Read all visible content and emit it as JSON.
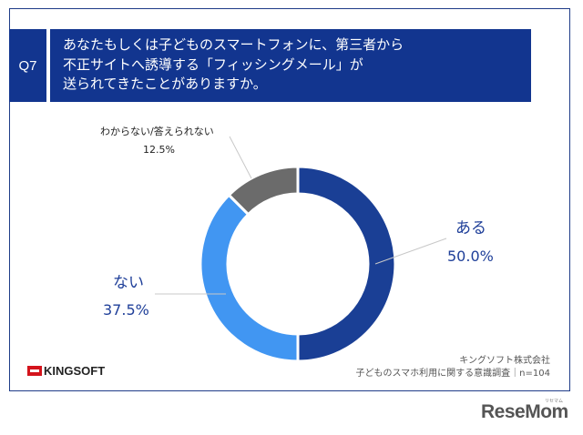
{
  "question": {
    "number": "Q7",
    "lines": [
      "あなたもしくは子どものスマートフォンに、第三者から",
      "不正サイトへ誘導する「フィッシングメール」が",
      "送られてきたことがありますか。"
    ]
  },
  "chart_data": {
    "type": "pie",
    "donut": true,
    "categories": [
      "ある",
      "ない",
      "わからない/答えられない"
    ],
    "values": [
      50.0,
      37.5,
      12.5
    ],
    "labels": [
      "50.0%",
      "37.5%",
      "12.5%"
    ],
    "colors": [
      "#1a3f95",
      "#4196f2",
      "#6b6b6b"
    ],
    "start": "top",
    "direction": "clockwise"
  },
  "branding": {
    "logo": "KINGSOFT",
    "watermark": "ReseMom",
    "watermark_sub": "リセマム"
  },
  "source": {
    "company": "キングソフト株式会社",
    "survey": "子どものスマホ利用に関する意識調査｜n=104"
  }
}
